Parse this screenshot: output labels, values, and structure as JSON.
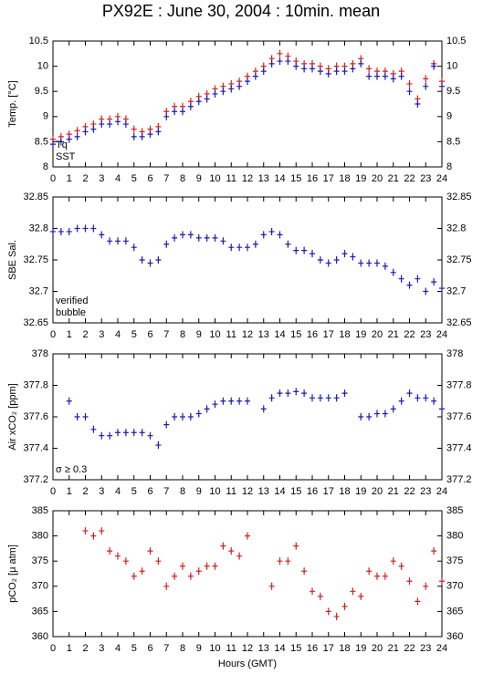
{
  "title": "PX92E : June 30, 2004 : 10min. mean",
  "chart_data": [
    {
      "type": "scatter",
      "ylabel": "Temp. [°C]",
      "xlim": [
        0,
        24
      ],
      "xticks": [
        0,
        1,
        2,
        3,
        4,
        5,
        6,
        7,
        8,
        9,
        10,
        11,
        12,
        13,
        14,
        15,
        16,
        17,
        18,
        19,
        20,
        21,
        22,
        23,
        24
      ],
      "ylim": [
        8,
        10.5
      ],
      "yticks": [
        8,
        8.5,
        9,
        9.5,
        10,
        10.5
      ],
      "x": [
        0,
        0.5,
        1,
        1.5,
        2,
        2.5,
        3,
        3.5,
        4,
        4.5,
        5,
        5.5,
        6,
        6.5,
        7,
        7.5,
        8,
        8.5,
        9,
        9.5,
        10,
        10.5,
        11,
        11.5,
        12,
        12.5,
        13,
        13.5,
        14,
        14.5,
        15,
        15.5,
        16,
        16.5,
        17,
        17.5,
        18,
        18.5,
        19,
        19.5,
        20,
        20.5,
        21,
        21.5,
        22,
        22.5,
        23,
        23.5,
        24
      ],
      "series": [
        {
          "name": "Tq",
          "color": "#d42020",
          "values": [
            8.55,
            8.6,
            8.65,
            8.72,
            8.8,
            8.85,
            8.95,
            8.95,
            9.0,
            8.95,
            8.75,
            8.7,
            8.75,
            8.8,
            9.1,
            9.2,
            9.2,
            9.3,
            9.4,
            9.45,
            9.55,
            9.6,
            9.65,
            9.7,
            9.8,
            9.9,
            10.0,
            10.15,
            10.25,
            10.2,
            10.1,
            10.05,
            10.05,
            10.0,
            9.95,
            10.0,
            10.0,
            10.05,
            10.15,
            9.95,
            9.9,
            9.9,
            9.85,
            9.9,
            9.65,
            9.35,
            9.75,
            10.05,
            9.7
          ]
        },
        {
          "name": "SST",
          "color": "#1c1cb0",
          "values": [
            8.45,
            8.5,
            8.55,
            8.6,
            8.7,
            8.75,
            8.85,
            8.85,
            8.9,
            8.85,
            8.6,
            8.6,
            8.65,
            8.7,
            9.0,
            9.1,
            9.1,
            9.2,
            9.3,
            9.35,
            9.45,
            9.5,
            9.55,
            9.6,
            9.7,
            9.8,
            9.9,
            10.05,
            10.1,
            10.1,
            10.0,
            9.95,
            9.95,
            9.9,
            9.85,
            9.9,
            9.9,
            9.95,
            10.05,
            9.8,
            9.8,
            9.8,
            9.75,
            9.8,
            9.5,
            9.25,
            9.6,
            10.0,
            9.6
          ]
        }
      ]
    },
    {
      "type": "scatter",
      "ylabel": "SBE Sal.",
      "xlim": [
        0,
        24
      ],
      "xticks": [
        0,
        1,
        2,
        3,
        4,
        5,
        6,
        7,
        8,
        9,
        10,
        11,
        12,
        13,
        14,
        15,
        16,
        17,
        18,
        19,
        20,
        21,
        22,
        23,
        24
      ],
      "ylim": [
        32.65,
        32.85
      ],
      "yticks": [
        32.65,
        32.7,
        32.75,
        32.8,
        32.85
      ],
      "x": [
        0,
        0.5,
        1,
        1.5,
        2,
        2.5,
        3,
        3.5,
        4,
        4.5,
        5,
        5.5,
        6,
        6.5,
        7,
        7.5,
        8,
        8.5,
        9,
        9.5,
        10,
        10.5,
        11,
        11.5,
        12,
        12.5,
        13,
        13.5,
        14,
        14.5,
        15,
        15.5,
        16,
        16.5,
        17,
        17.5,
        18,
        18.5,
        19,
        19.5,
        20,
        20.5,
        21,
        21.5,
        22,
        22.5,
        23,
        23.5,
        24
      ],
      "series": [
        {
          "name": "verified",
          "color": "#1c1cb0",
          "values": [
            32.795,
            32.795,
            32.795,
            32.8,
            32.8,
            32.8,
            32.79,
            32.78,
            32.78,
            32.78,
            32.77,
            32.75,
            32.745,
            32.75,
            32.775,
            32.785,
            32.79,
            32.79,
            32.785,
            32.785,
            32.785,
            32.78,
            32.77,
            32.77,
            32.77,
            32.775,
            32.79,
            32.795,
            32.79,
            32.775,
            32.765,
            32.765,
            32.76,
            32.75,
            32.745,
            32.75,
            32.76,
            32.755,
            32.745,
            32.745,
            32.745,
            32.74,
            32.73,
            32.72,
            32.71,
            32.72,
            32.7,
            32.715,
            32.705
          ]
        }
      ],
      "annotations": [
        {
          "text": "bubble",
          "color": "#cc00cc"
        }
      ]
    },
    {
      "type": "scatter",
      "ylabel": "Air xCO₂ [ppm]",
      "xlim": [
        0,
        24
      ],
      "xticks": [
        0,
        1,
        2,
        3,
        4,
        5,
        6,
        7,
        8,
        9,
        10,
        11,
        12,
        13,
        14,
        15,
        16,
        17,
        18,
        19,
        20,
        21,
        22,
        23,
        24
      ],
      "ylim": [
        377.2,
        378
      ],
      "yticks": [
        377.2,
        377.4,
        377.6,
        377.8,
        378
      ],
      "x": [
        0,
        0.5,
        1,
        1.5,
        2,
        2.5,
        3,
        3.5,
        4,
        4.5,
        5,
        5.5,
        6,
        6.5,
        7,
        7.5,
        8,
        8.5,
        9,
        9.5,
        10,
        10.5,
        11,
        11.5,
        12,
        12.5,
        13,
        13.5,
        14,
        14.5,
        15,
        15.5,
        16,
        16.5,
        17,
        17.5,
        18,
        18.5,
        19,
        19.5,
        20,
        20.5,
        21,
        21.5,
        22,
        22.5,
        23,
        23.5,
        24
      ],
      "series": [
        {
          "color": "#1c1cb0",
          "values": [
            null,
            null,
            377.7,
            377.6,
            377.6,
            377.52,
            377.48,
            377.48,
            377.5,
            377.5,
            377.5,
            377.5,
            377.48,
            377.42,
            377.55,
            377.6,
            377.6,
            377.6,
            377.62,
            377.65,
            377.68,
            377.7,
            377.7,
            377.7,
            377.7,
            null,
            377.65,
            377.72,
            377.75,
            377.75,
            377.76,
            377.75,
            377.72,
            377.72,
            377.72,
            377.72,
            377.75,
            null,
            377.6,
            377.6,
            377.62,
            377.62,
            377.65,
            377.7,
            377.75,
            377.72,
            377.72,
            377.7,
            377.65
          ]
        }
      ],
      "annotations": [
        {
          "text": "σ ≥ 0.3",
          "color": "#cc00cc"
        }
      ]
    },
    {
      "type": "scatter",
      "ylabel": "pCO₂ [μ atm]",
      "xlabel": "Hours (GMT)",
      "xlim": [
        0,
        24
      ],
      "xticks": [
        0,
        1,
        2,
        3,
        4,
        5,
        6,
        7,
        8,
        9,
        10,
        11,
        12,
        13,
        14,
        15,
        16,
        17,
        18,
        19,
        20,
        21,
        22,
        23,
        24
      ],
      "ylim": [
        360,
        385
      ],
      "yticks": [
        360,
        365,
        370,
        375,
        380,
        385
      ],
      "x": [
        0,
        0.5,
        1,
        1.5,
        2,
        2.5,
        3,
        3.5,
        4,
        4.5,
        5,
        5.5,
        6,
        6.5,
        7,
        7.5,
        8,
        8.5,
        9,
        9.5,
        10,
        10.5,
        11,
        11.5,
        12,
        12.5,
        13,
        13.5,
        14,
        14.5,
        15,
        15.5,
        16,
        16.5,
        17,
        17.5,
        18,
        18.5,
        19,
        19.5,
        20,
        20.5,
        21,
        21.5,
        22,
        22.5,
        23,
        23.5,
        24
      ],
      "series": [
        {
          "color": "#d42020",
          "values": [
            null,
            null,
            null,
            null,
            381,
            380,
            381,
            377,
            376,
            375,
            372,
            373,
            377,
            375,
            370,
            372,
            374,
            372,
            373,
            374,
            374,
            378,
            377,
            376,
            380,
            null,
            null,
            370,
            375,
            375,
            378,
            373,
            369,
            368,
            365,
            364,
            366,
            369,
            368,
            373,
            372,
            372,
            375,
            374,
            371,
            367,
            370,
            377,
            371
          ]
        }
      ]
    }
  ]
}
